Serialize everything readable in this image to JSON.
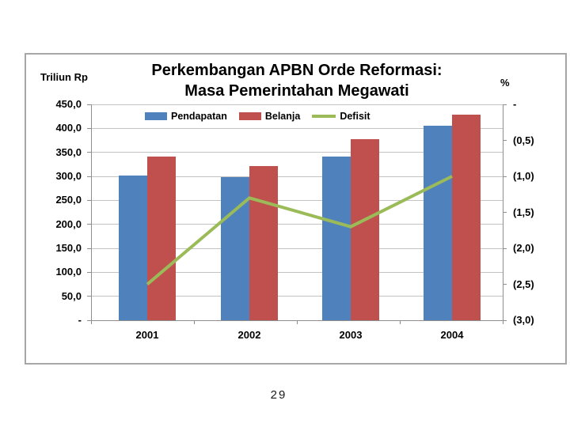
{
  "page": {
    "number": "29"
  },
  "chart_data": {
    "type": "bar",
    "subtype": "grouped-bar-with-line-overlay",
    "title": {
      "line1": "Perkembangan APBN Orde Reformasi:",
      "line2": "Masa Pemerintahan Megawati"
    },
    "categories": [
      "2001",
      "2002",
      "2003",
      "2004"
    ],
    "series": [
      {
        "name": "Pendapatan",
        "type": "bar",
        "axis": "left",
        "color": "#4F81BD",
        "values": [
          301,
          298,
          341,
          405
        ]
      },
      {
        "name": "Belanja",
        "type": "bar",
        "axis": "left",
        "color": "#C0504D",
        "values": [
          341,
          322,
          377,
          428
        ]
      },
      {
        "name": "Defisit",
        "type": "line",
        "axis": "right",
        "color": "#9BBB59",
        "values": [
          -2.5,
          -1.3,
          -1.7,
          -1.0
        ]
      }
    ],
    "left_axis": {
      "title": "Triliun Rp",
      "min": 0,
      "max": 450,
      "step": 50,
      "tick_labels": [
        "450,0",
        "400,0",
        "350,0",
        "300,0",
        "250,0",
        "200,0",
        "150,0",
        "100,0",
        "50,0",
        "-"
      ]
    },
    "right_axis": {
      "title": "%",
      "min": -3.0,
      "max": 0,
      "step": 0.5,
      "tick_labels": [
        "-",
        "(0,5)",
        "(1,0)",
        "(1,5)",
        "(2,0)",
        "(2,5)",
        "(3,0)"
      ]
    },
    "legend": {
      "position": "top",
      "entries": [
        "Pendapatan",
        "Belanja",
        "Defisit"
      ]
    },
    "grid": true,
    "colors": {
      "gridline": "#c3c3c3",
      "axis": "#8e8e8e",
      "text": "#000000",
      "frame_border": "#a6a6a6"
    }
  }
}
